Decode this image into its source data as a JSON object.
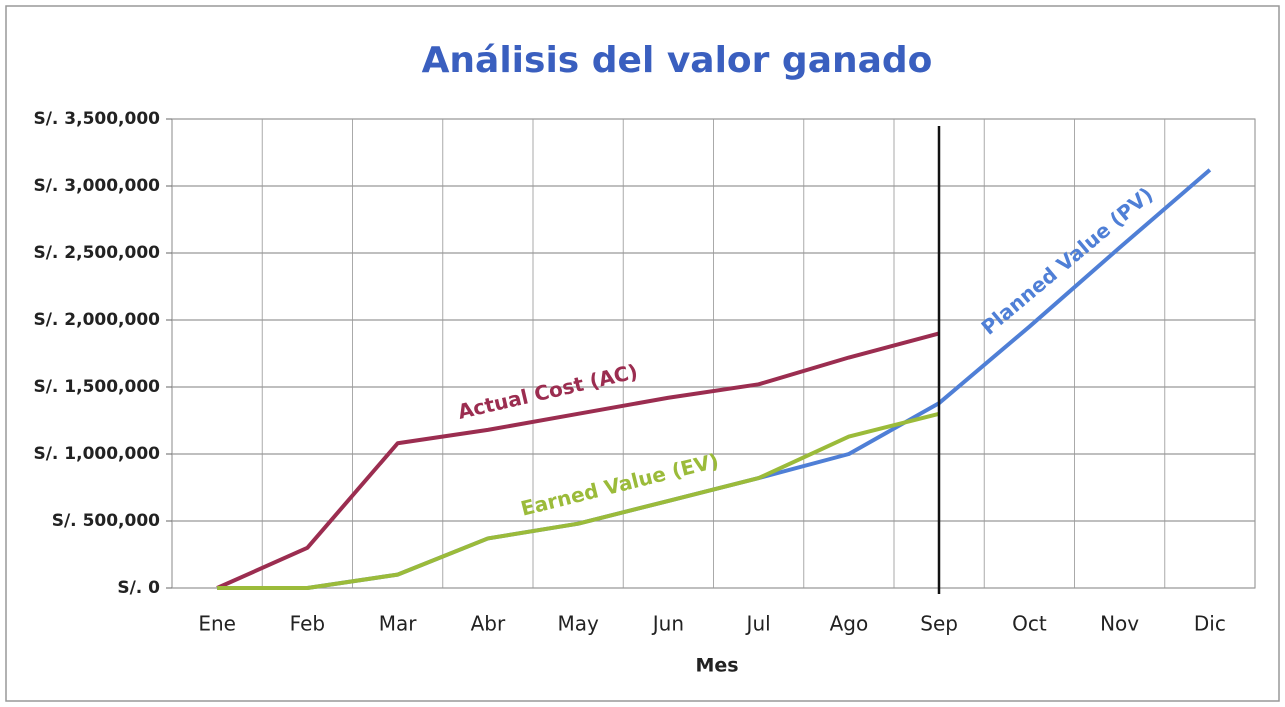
{
  "chart_data": {
    "type": "line",
    "title": "Análisis del valor ganado",
    "x_label": "Mes",
    "categories": [
      "Ene",
      "Feb",
      "Mar",
      "Abr",
      "May",
      "Jun",
      "Jul",
      "Ago",
      "Sep",
      "Oct",
      "Nov",
      "Dic"
    ],
    "series": [
      {
        "name": "Actual Cost (AC)",
        "color": "#9b2d50",
        "values": [
          0,
          300000,
          1080000,
          1180000,
          1300000,
          1420000,
          1520000,
          1720000,
          1900000,
          null,
          null,
          null
        ]
      },
      {
        "name": "Planned Value (PV)",
        "color": "#4f7fd6",
        "values": [
          0,
          0,
          100000,
          370000,
          480000,
          650000,
          820000,
          1000000,
          1380000,
          1950000,
          2540000,
          3120000
        ]
      },
      {
        "name": "Earned Value (EV)",
        "color": "#9bbb3a",
        "values": [
          0,
          0,
          100000,
          370000,
          480000,
          650000,
          820000,
          1130000,
          1300000,
          null,
          null,
          null
        ]
      }
    ],
    "ylim": [
      0,
      3500000
    ],
    "yticks": [
      {
        "value": 0,
        "label": "S/. 0"
      },
      {
        "value": 500000,
        "label": "S/. 500,000"
      },
      {
        "value": 1000000,
        "label": "S/. 1,000,000"
      },
      {
        "value": 1500000,
        "label": "S/. 1,500,000"
      },
      {
        "value": 2000000,
        "label": "S/. 2,000,000"
      },
      {
        "value": 2500000,
        "label": "S/. 2,500,000"
      },
      {
        "value": 3000000,
        "label": "S/. 3,000,000"
      },
      {
        "value": 3500000,
        "label": "S/. 3,500,000"
      }
    ],
    "grid": true
  }
}
